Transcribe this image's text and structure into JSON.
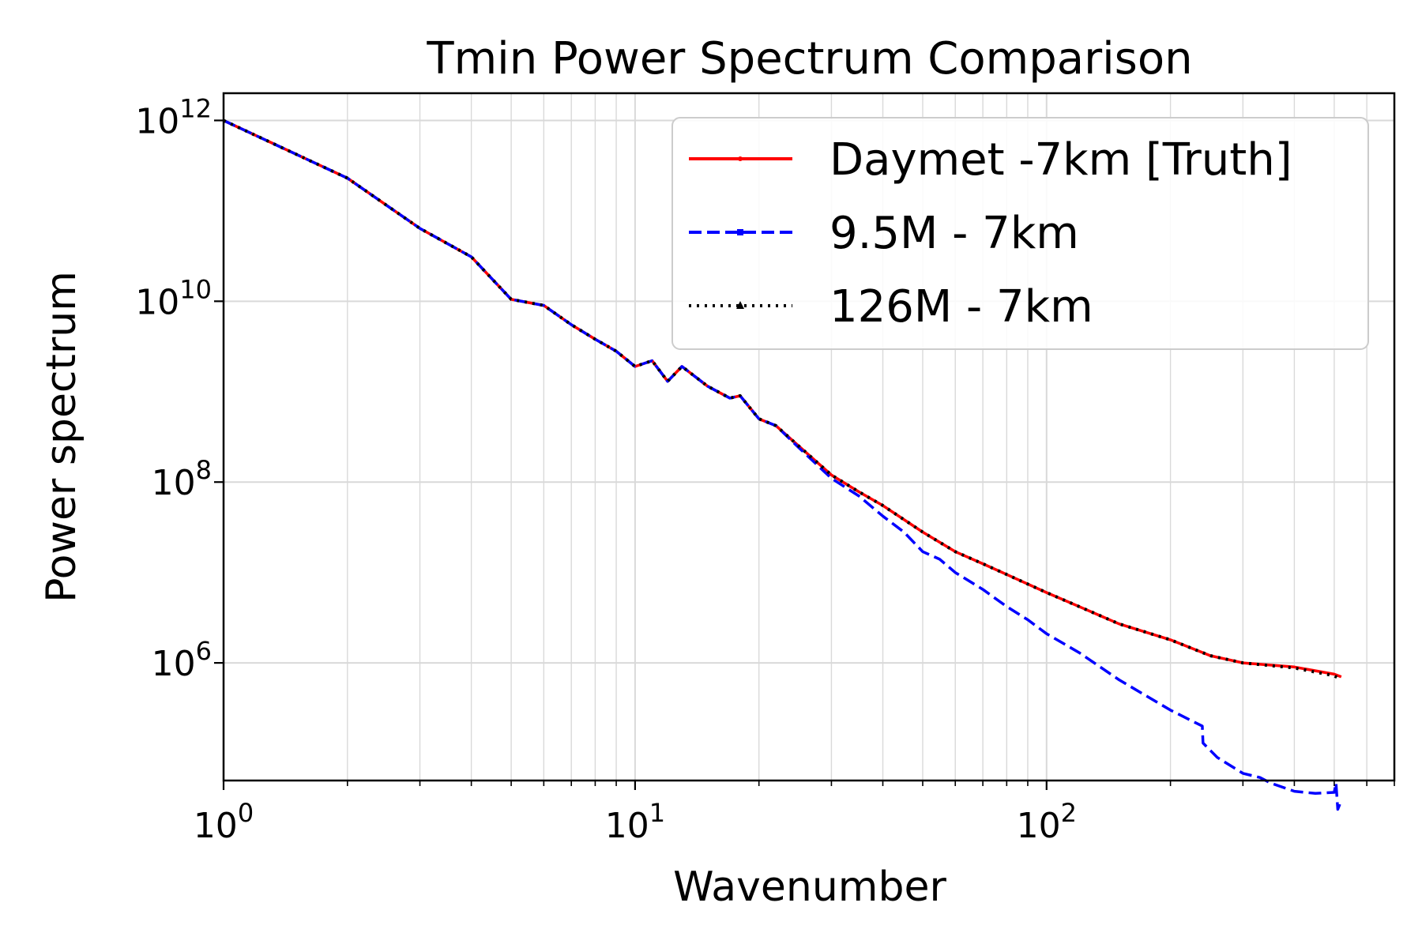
{
  "chart_data": {
    "type": "line",
    "title": "Tmin Power Spectrum Comparison",
    "xlabel": "Wavenumber",
    "ylabel": "Power spectrum",
    "xscale": "log",
    "yscale": "log",
    "xlim": [
      1,
      700
    ],
    "ylim": [
      50000,
      2000000000000
    ],
    "grid": true,
    "legend_position": "top-right",
    "x_ticks": [
      {
        "base": "10",
        "exp": "0",
        "value": 1
      },
      {
        "base": "10",
        "exp": "1",
        "value": 10
      },
      {
        "base": "10",
        "exp": "2",
        "value": 100
      }
    ],
    "y_ticks": [
      {
        "base": "10",
        "exp": "6",
        "value": 1000000
      },
      {
        "base": "10",
        "exp": "8",
        "value": 100000000
      },
      {
        "base": "10",
        "exp": "10",
        "value": 10000000000
      },
      {
        "base": "10",
        "exp": "12",
        "value": 1000000000000
      }
    ],
    "series": [
      {
        "name": "Daymet -7km [Truth]",
        "color": "#ff0000",
        "style": "solid",
        "marker": "point",
        "x": [
          1,
          2,
          3,
          4,
          5,
          6,
          7,
          8,
          9,
          10,
          11,
          12,
          13,
          15,
          17,
          18,
          20,
          22,
          25,
          30,
          35,
          40,
          50,
          60,
          70,
          80,
          100,
          120,
          150,
          200,
          250,
          300,
          400,
          500,
          520
        ],
        "y": [
          1000000000000,
          230000000000,
          64000000000,
          31000000000,
          10500000000,
          9000000000,
          5500000000,
          3800000000,
          2800000000,
          1900000000,
          2200000000,
          1300000000,
          1900000000,
          1150000000,
          850000000,
          900000000,
          500000000,
          420000000,
          250000000,
          120000000,
          78000000,
          55000000,
          28000000,
          17000000,
          12500000,
          9500000,
          6000000,
          4200000,
          2700000,
          1800000,
          1200000,
          1000000,
          900000,
          750000,
          700000
        ]
      },
      {
        "name": "9.5M - 7km",
        "color": "#0000ff",
        "style": "dashed",
        "marker": "square",
        "x": [
          1,
          2,
          3,
          4,
          5,
          6,
          7,
          8,
          9,
          10,
          11,
          12,
          13,
          15,
          17,
          18,
          20,
          22,
          25,
          30,
          35,
          40,
          45,
          50,
          55,
          60,
          70,
          80,
          90,
          100,
          120,
          150,
          200,
          239,
          240,
          260,
          300,
          330,
          350,
          400,
          450,
          500,
          505,
          510,
          520
        ],
        "y": [
          1000000000000,
          230000000000,
          64000000000,
          31000000000,
          10500000000,
          9000000000,
          5500000000,
          3800000000,
          2800000000,
          1900000000,
          2200000000,
          1300000000,
          1900000000,
          1150000000,
          850000000,
          900000000,
          500000000,
          420000000,
          240000000,
          110000000,
          70000000,
          42000000,
          28000000,
          17000000,
          14000000,
          10000000,
          6500000,
          4200000,
          3000000,
          2100000,
          1300000,
          650000,
          300000,
          200000,
          130000,
          90000,
          60000,
          54000,
          47000,
          38000,
          36000,
          37000,
          47000,
          24000,
          30000
        ]
      },
      {
        "name": "126M - 7km",
        "color": "#000000",
        "style": "dotted",
        "marker": "triangle",
        "x": [
          1,
          2,
          3,
          4,
          5,
          6,
          7,
          8,
          9,
          10,
          11,
          12,
          13,
          15,
          17,
          18,
          20,
          22,
          25,
          30,
          35,
          40,
          50,
          60,
          70,
          80,
          100,
          120,
          150,
          200,
          250,
          300,
          400,
          500,
          520
        ],
        "y": [
          1000000000000,
          230000000000,
          64000000000,
          31000000000,
          10500000000,
          9000000000,
          5500000000,
          3800000000,
          2800000000,
          1900000000,
          2200000000,
          1300000000,
          1900000000,
          1150000000,
          850000000,
          900000000,
          500000000,
          420000000,
          250000000,
          120000000,
          78000000,
          55000000,
          28000000,
          17000000,
          12500000,
          9500000,
          6000000,
          4200000,
          2700000,
          1800000,
          1200000,
          1000000,
          880000,
          720000,
          650000
        ]
      }
    ]
  }
}
